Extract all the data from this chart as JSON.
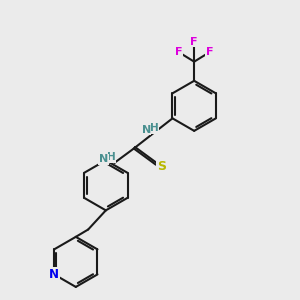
{
  "background_color": "#ebebeb",
  "bond_color": "#1a1a1a",
  "N_color": "#0000ee",
  "S_color": "#b8b800",
  "F_color": "#dd00dd",
  "NH_color": "#4a9090",
  "line_width": 1.5,
  "doffset": 0.08,
  "xlim": [
    0,
    10
  ],
  "ylim": [
    0,
    10
  ]
}
